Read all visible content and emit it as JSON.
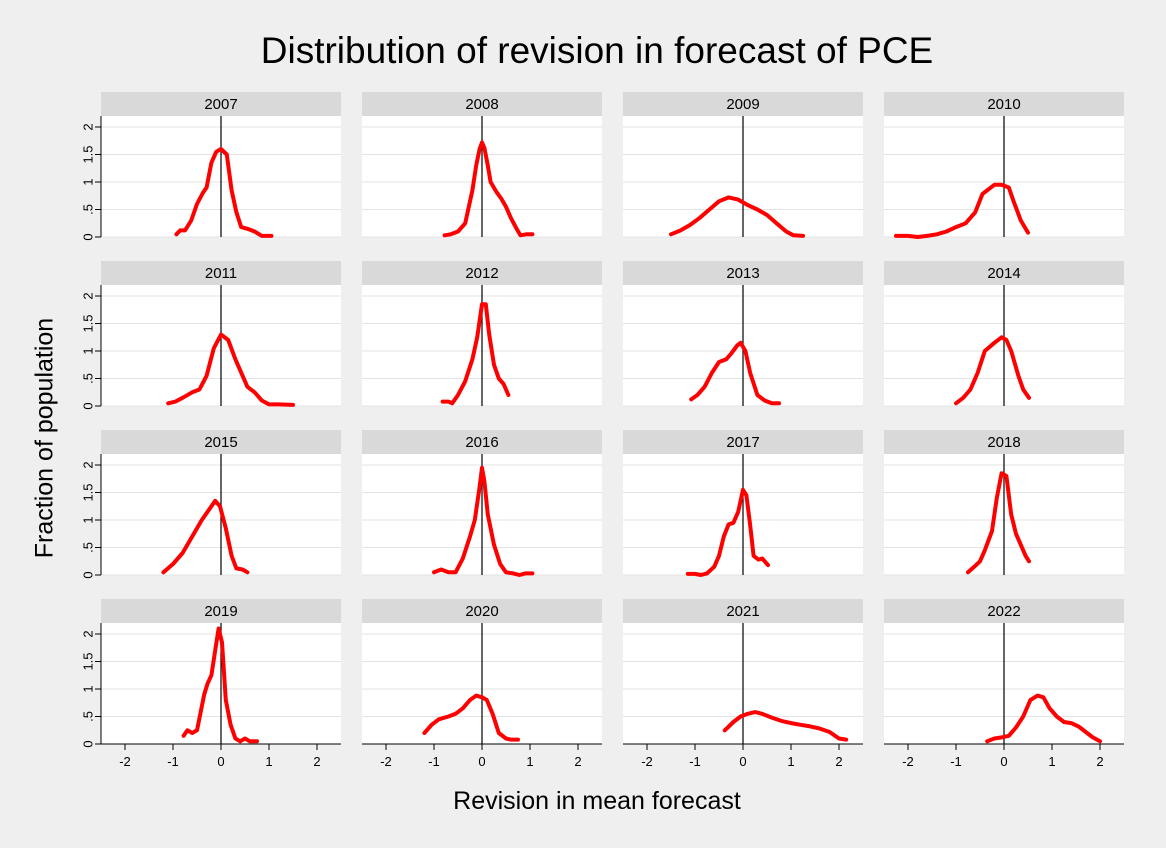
{
  "chart_data": {
    "type": "line",
    "title": "Distribution of revision in forecast of PCE",
    "xlabel": "Revision in mean forecast",
    "ylabel": "Fraction of population",
    "xlim": [
      -2.5,
      2.5
    ],
    "ylim": [
      0,
      2.2
    ],
    "x_ticks": [
      -2,
      -1,
      0,
      1,
      2
    ],
    "x_tick_labels": [
      "-2",
      "-1",
      "0",
      "1",
      "2"
    ],
    "y_ticks": [
      0,
      0.5,
      1,
      1.5,
      2
    ],
    "y_tick_labels": [
      "0",
      ".5",
      "1",
      "1.5",
      "2"
    ],
    "reference_line_x": 0,
    "grid": true,
    "line_color": "#ff0000",
    "panels": [
      {
        "label": "2007",
        "points": [
          [
            -0.93,
            0.05
          ],
          [
            -0.85,
            0.12
          ],
          [
            -0.75,
            0.12
          ],
          [
            -0.62,
            0.3
          ],
          [
            -0.5,
            0.6
          ],
          [
            -0.38,
            0.8
          ],
          [
            -0.3,
            0.9
          ],
          [
            -0.2,
            1.35
          ],
          [
            -0.1,
            1.55
          ],
          [
            0.0,
            1.6
          ],
          [
            0.12,
            1.5
          ],
          [
            0.22,
            0.85
          ],
          [
            0.32,
            0.45
          ],
          [
            0.42,
            0.18
          ],
          [
            0.55,
            0.15
          ],
          [
            0.7,
            0.1
          ],
          [
            0.85,
            0.02
          ],
          [
            1.05,
            0.02
          ]
        ]
      },
      {
        "label": "2008",
        "points": [
          [
            -0.78,
            0.03
          ],
          [
            -0.65,
            0.05
          ],
          [
            -0.5,
            0.1
          ],
          [
            -0.35,
            0.25
          ],
          [
            -0.2,
            0.85
          ],
          [
            -0.12,
            1.3
          ],
          [
            -0.05,
            1.6
          ],
          [
            0.0,
            1.72
          ],
          [
            0.05,
            1.62
          ],
          [
            0.12,
            1.3
          ],
          [
            0.18,
            1.0
          ],
          [
            0.3,
            0.82
          ],
          [
            0.4,
            0.7
          ],
          [
            0.5,
            0.55
          ],
          [
            0.6,
            0.35
          ],
          [
            0.72,
            0.15
          ],
          [
            0.8,
            0.03
          ],
          [
            0.92,
            0.05
          ],
          [
            1.05,
            0.05
          ]
        ]
      },
      {
        "label": "2009",
        "points": [
          [
            -1.5,
            0.05
          ],
          [
            -1.3,
            0.12
          ],
          [
            -1.1,
            0.22
          ],
          [
            -0.9,
            0.35
          ],
          [
            -0.7,
            0.5
          ],
          [
            -0.5,
            0.65
          ],
          [
            -0.3,
            0.72
          ],
          [
            -0.1,
            0.68
          ],
          [
            0.1,
            0.58
          ],
          [
            0.3,
            0.5
          ],
          [
            0.5,
            0.4
          ],
          [
            0.7,
            0.25
          ],
          [
            0.9,
            0.1
          ],
          [
            1.05,
            0.03
          ],
          [
            1.25,
            0.02
          ]
        ]
      },
      {
        "label": "2010",
        "points": [
          [
            -2.25,
            0.02
          ],
          [
            -2.0,
            0.02
          ],
          [
            -1.8,
            0.0
          ],
          [
            -1.6,
            0.02
          ],
          [
            -1.4,
            0.05
          ],
          [
            -1.2,
            0.1
          ],
          [
            -1.0,
            0.18
          ],
          [
            -0.8,
            0.25
          ],
          [
            -0.6,
            0.45
          ],
          [
            -0.45,
            0.78
          ],
          [
            -0.35,
            0.85
          ],
          [
            -0.2,
            0.95
          ],
          [
            -0.05,
            0.95
          ],
          [
            0.1,
            0.9
          ],
          [
            0.2,
            0.65
          ],
          [
            0.35,
            0.3
          ],
          [
            0.5,
            0.08
          ]
        ]
      },
      {
        "label": "2011",
        "points": [
          [
            -1.1,
            0.05
          ],
          [
            -0.95,
            0.08
          ],
          [
            -0.8,
            0.15
          ],
          [
            -0.6,
            0.25
          ],
          [
            -0.45,
            0.3
          ],
          [
            -0.3,
            0.55
          ],
          [
            -0.15,
            1.05
          ],
          [
            0.0,
            1.3
          ],
          [
            0.15,
            1.2
          ],
          [
            0.3,
            0.85
          ],
          [
            0.45,
            0.55
          ],
          [
            0.55,
            0.35
          ],
          [
            0.7,
            0.25
          ],
          [
            0.85,
            0.1
          ],
          [
            1.0,
            0.03
          ],
          [
            1.2,
            0.03
          ],
          [
            1.5,
            0.02
          ]
        ]
      },
      {
        "label": "2012",
        "points": [
          [
            -0.82,
            0.08
          ],
          [
            -0.7,
            0.08
          ],
          [
            -0.62,
            0.05
          ],
          [
            -0.5,
            0.2
          ],
          [
            -0.35,
            0.45
          ],
          [
            -0.2,
            0.85
          ],
          [
            -0.1,
            1.25
          ],
          [
            0.0,
            1.85
          ],
          [
            0.08,
            1.85
          ],
          [
            0.15,
            1.3
          ],
          [
            0.25,
            0.75
          ],
          [
            0.35,
            0.5
          ],
          [
            0.45,
            0.4
          ],
          [
            0.55,
            0.2
          ]
        ]
      },
      {
        "label": "2013",
        "points": [
          [
            -1.08,
            0.12
          ],
          [
            -0.95,
            0.2
          ],
          [
            -0.8,
            0.35
          ],
          [
            -0.65,
            0.6
          ],
          [
            -0.5,
            0.8
          ],
          [
            -0.35,
            0.85
          ],
          [
            -0.25,
            0.95
          ],
          [
            -0.12,
            1.1
          ],
          [
            -0.05,
            1.15
          ],
          [
            0.05,
            1.0
          ],
          [
            0.15,
            0.6
          ],
          [
            0.3,
            0.2
          ],
          [
            0.45,
            0.1
          ],
          [
            0.6,
            0.05
          ],
          [
            0.75,
            0.05
          ]
        ]
      },
      {
        "label": "2014",
        "points": [
          [
            -1.0,
            0.05
          ],
          [
            -0.85,
            0.15
          ],
          [
            -0.7,
            0.3
          ],
          [
            -0.55,
            0.6
          ],
          [
            -0.4,
            1.0
          ],
          [
            -0.2,
            1.15
          ],
          [
            -0.05,
            1.25
          ],
          [
            0.05,
            1.2
          ],
          [
            0.15,
            1.0
          ],
          [
            0.3,
            0.55
          ],
          [
            0.4,
            0.3
          ],
          [
            0.52,
            0.15
          ]
        ]
      },
      {
        "label": "2015",
        "points": [
          [
            -1.2,
            0.05
          ],
          [
            -1.0,
            0.2
          ],
          [
            -0.8,
            0.4
          ],
          [
            -0.6,
            0.7
          ],
          [
            -0.4,
            1.0
          ],
          [
            -0.2,
            1.25
          ],
          [
            -0.12,
            1.35
          ],
          [
            -0.02,
            1.25
          ],
          [
            0.1,
            0.85
          ],
          [
            0.22,
            0.35
          ],
          [
            0.32,
            0.12
          ],
          [
            0.45,
            0.1
          ],
          [
            0.55,
            0.05
          ]
        ]
      },
      {
        "label": "2016",
        "points": [
          [
            -1.0,
            0.05
          ],
          [
            -0.85,
            0.1
          ],
          [
            -0.7,
            0.05
          ],
          [
            -0.55,
            0.05
          ],
          [
            -0.4,
            0.3
          ],
          [
            -0.25,
            0.7
          ],
          [
            -0.15,
            1.0
          ],
          [
            -0.05,
            1.6
          ],
          [
            0.0,
            1.95
          ],
          [
            0.05,
            1.7
          ],
          [
            0.12,
            1.1
          ],
          [
            0.25,
            0.55
          ],
          [
            0.38,
            0.2
          ],
          [
            0.5,
            0.05
          ],
          [
            0.65,
            0.03
          ],
          [
            0.78,
            0.0
          ],
          [
            0.9,
            0.03
          ],
          [
            1.05,
            0.03
          ]
        ]
      },
      {
        "label": "2017",
        "points": [
          [
            -1.15,
            0.02
          ],
          [
            -1.0,
            0.02
          ],
          [
            -0.88,
            0.0
          ],
          [
            -0.75,
            0.03
          ],
          [
            -0.6,
            0.15
          ],
          [
            -0.5,
            0.35
          ],
          [
            -0.4,
            0.7
          ],
          [
            -0.3,
            0.92
          ],
          [
            -0.2,
            0.95
          ],
          [
            -0.1,
            1.15
          ],
          [
            0.0,
            1.55
          ],
          [
            0.07,
            1.45
          ],
          [
            0.15,
            0.9
          ],
          [
            0.22,
            0.35
          ],
          [
            0.32,
            0.28
          ],
          [
            0.4,
            0.3
          ],
          [
            0.52,
            0.18
          ]
        ]
      },
      {
        "label": "2018",
        "points": [
          [
            -0.75,
            0.05
          ],
          [
            -0.62,
            0.15
          ],
          [
            -0.5,
            0.25
          ],
          [
            -0.4,
            0.45
          ],
          [
            -0.25,
            0.8
          ],
          [
            -0.15,
            1.4
          ],
          [
            -0.05,
            1.85
          ],
          [
            0.05,
            1.8
          ],
          [
            0.15,
            1.1
          ],
          [
            0.25,
            0.75
          ],
          [
            0.35,
            0.55
          ],
          [
            0.45,
            0.35
          ],
          [
            0.52,
            0.25
          ]
        ]
      },
      {
        "label": "2019",
        "points": [
          [
            -0.78,
            0.15
          ],
          [
            -0.7,
            0.25
          ],
          [
            -0.6,
            0.2
          ],
          [
            -0.5,
            0.25
          ],
          [
            -0.35,
            0.9
          ],
          [
            -0.28,
            1.1
          ],
          [
            -0.2,
            1.25
          ],
          [
            -0.12,
            1.7
          ],
          [
            -0.05,
            2.1
          ],
          [
            0.02,
            1.85
          ],
          [
            0.1,
            0.8
          ],
          [
            0.2,
            0.35
          ],
          [
            0.3,
            0.1
          ],
          [
            0.4,
            0.05
          ],
          [
            0.5,
            0.1
          ],
          [
            0.6,
            0.05
          ],
          [
            0.75,
            0.05
          ]
        ]
      },
      {
        "label": "2020",
        "points": [
          [
            -1.2,
            0.2
          ],
          [
            -1.05,
            0.35
          ],
          [
            -0.9,
            0.45
          ],
          [
            -0.7,
            0.5
          ],
          [
            -0.55,
            0.55
          ],
          [
            -0.4,
            0.65
          ],
          [
            -0.25,
            0.8
          ],
          [
            -0.12,
            0.88
          ],
          [
            0.0,
            0.85
          ],
          [
            0.1,
            0.8
          ],
          [
            0.22,
            0.55
          ],
          [
            0.35,
            0.2
          ],
          [
            0.5,
            0.1
          ],
          [
            0.6,
            0.08
          ],
          [
            0.75,
            0.08
          ]
        ]
      },
      {
        "label": "2021",
        "points": [
          [
            -0.38,
            0.25
          ],
          [
            -0.2,
            0.4
          ],
          [
            -0.05,
            0.5
          ],
          [
            0.1,
            0.55
          ],
          [
            0.25,
            0.58
          ],
          [
            0.4,
            0.55
          ],
          [
            0.6,
            0.48
          ],
          [
            0.8,
            0.42
          ],
          [
            1.0,
            0.38
          ],
          [
            1.2,
            0.35
          ],
          [
            1.4,
            0.32
          ],
          [
            1.6,
            0.28
          ],
          [
            1.8,
            0.22
          ],
          [
            2.0,
            0.1
          ],
          [
            2.15,
            0.08
          ]
        ]
      },
      {
        "label": "2022",
        "points": [
          [
            -0.35,
            0.05
          ],
          [
            -0.2,
            0.1
          ],
          [
            -0.05,
            0.12
          ],
          [
            0.1,
            0.15
          ],
          [
            0.25,
            0.3
          ],
          [
            0.4,
            0.5
          ],
          [
            0.55,
            0.8
          ],
          [
            0.7,
            0.88
          ],
          [
            0.82,
            0.85
          ],
          [
            0.95,
            0.65
          ],
          [
            1.1,
            0.5
          ],
          [
            1.25,
            0.4
          ],
          [
            1.4,
            0.38
          ],
          [
            1.55,
            0.32
          ],
          [
            1.7,
            0.22
          ],
          [
            1.85,
            0.12
          ],
          [
            2.0,
            0.05
          ]
        ]
      }
    ]
  }
}
